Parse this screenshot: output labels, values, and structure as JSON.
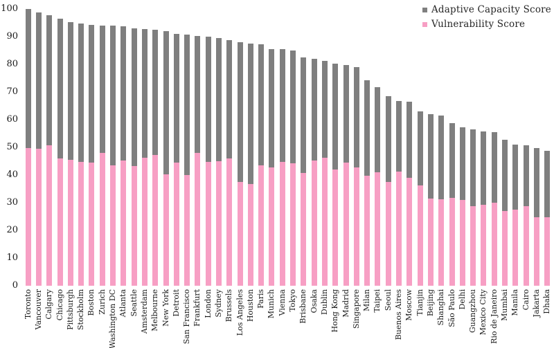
{
  "chart_data": {
    "type": "bar",
    "stacked": true,
    "title": "",
    "xlabel": "",
    "ylabel": "",
    "ylim": [
      0,
      100
    ],
    "yticks": [
      0,
      10,
      20,
      30,
      40,
      50,
      60,
      70,
      80,
      90,
      100
    ],
    "grid": false,
    "legend_position": "top-right",
    "categories": [
      "Toronto",
      "Vancouver",
      "Calgary",
      "Chicago",
      "Pittsburgh",
      "Stockholm",
      "Boston",
      "Zurich",
      "Washington DC",
      "Atlanta",
      "Seattle",
      "Amsterdam",
      "Melbourne",
      "New York",
      "Detroit",
      "San Francisco",
      "Frankfurt",
      "London",
      "Sydney",
      "Brussels",
      "Los Angeles",
      "Houston",
      "Paris",
      "Munich",
      "Vienna",
      "Tokyo",
      "Brisbane",
      "Osaka",
      "Dublin",
      "Hong Kong",
      "Madrid",
      "Singapore",
      "Milan",
      "Taipei",
      "Seoul",
      "Buenos Aires",
      "Moscow",
      "Tianjin",
      "Beijing",
      "Shanghai",
      "São Paulo",
      "Delhi",
      "Guangzhou",
      "Mexico City",
      "Rio de Janeiro",
      "Mumbai",
      "Manila",
      "Cairo",
      "Jakarta",
      "Dhaka"
    ],
    "series": [
      {
        "name": "Adaptive Capacity Score",
        "color": "#7f7f7f",
        "stack_order": "top",
        "values": [
          50.2,
          49.3,
          47.0,
          50.4,
          49.8,
          50.1,
          49.9,
          46.0,
          50.6,
          48.5,
          49.7,
          46.5,
          45.1,
          51.6,
          46.5,
          50.7,
          42.3,
          45.2,
          44.4,
          42.7,
          50.5,
          50.6,
          43.9,
          42.8,
          40.6,
          40.8,
          41.7,
          36.7,
          35.0,
          38.2,
          35.1,
          36.2,
          34.5,
          30.6,
          31.2,
          25.5,
          27.5,
          26.8,
          30.4,
          30.2,
          27.0,
          26.1,
          27.8,
          26.5,
          25.3,
          25.8,
          23.3,
          21.9,
          25.0,
          24.1
        ]
      },
      {
        "name": "Vulnerability Score",
        "color": "#f79fc4",
        "stack_order": "bottom",
        "values": [
          49.8,
          49.4,
          50.8,
          46.0,
          45.4,
          44.7,
          44.4,
          48.0,
          43.4,
          45.3,
          43.3,
          46.3,
          47.3,
          40.3,
          44.6,
          40.0,
          48.0,
          44.8,
          45.0,
          46.0,
          37.5,
          36.8,
          43.4,
          42.7,
          44.8,
          44.3,
          40.8,
          45.2,
          46.3,
          42.0,
          44.6,
          42.8,
          39.7,
          41.1,
          37.4,
          41.3,
          39.0,
          36.2,
          31.6,
          31.2,
          31.8,
          31.1,
          28.7,
          29.2,
          30.1,
          26.9,
          27.6,
          28.8,
          24.7,
          24.7
        ]
      }
    ],
    "stacked_totals": [
      100.0,
      98.7,
      97.8,
      96.4,
      95.2,
      94.8,
      94.3,
      94.0,
      94.0,
      93.8,
      93.0,
      92.8,
      92.4,
      91.9,
      91.1,
      90.7,
      90.3,
      90.0,
      89.4,
      88.7,
      88.0,
      87.4,
      87.3,
      85.5,
      85.4,
      85.1,
      82.5,
      81.9,
      81.3,
      80.2,
      79.7,
      79.0,
      74.2,
      71.7,
      68.6,
      66.8,
      66.5,
      63.0,
      62.0,
      61.4,
      58.8,
      57.2,
      56.5,
      55.7,
      55.4,
      52.7,
      50.9,
      50.7,
      49.7,
      48.8
    ]
  }
}
